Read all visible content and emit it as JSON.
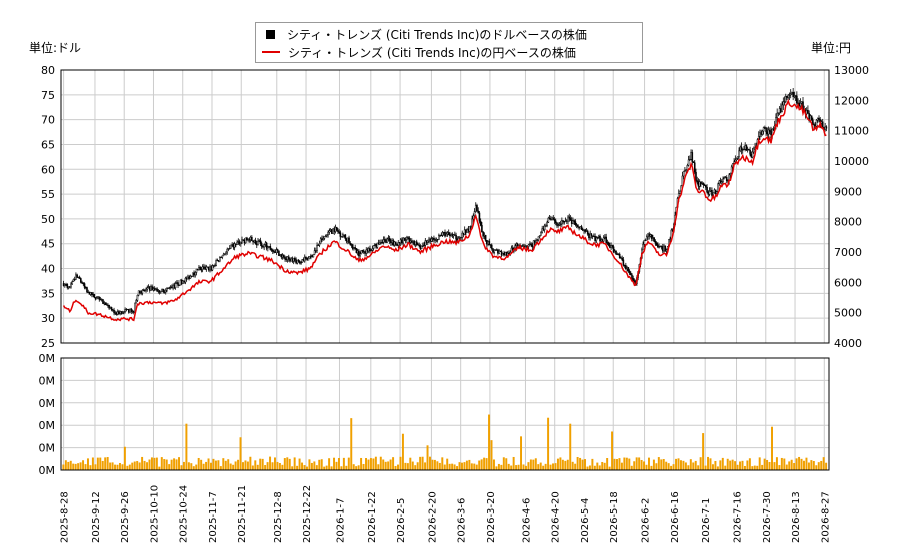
{
  "chart_data": {
    "type": "candlestick",
    "legend": [
      {
        "name": "シティ・トレンズ (Citi Trends Inc)のドルベースの株価",
        "color": "#000000",
        "marker": "square"
      },
      {
        "name": "シティ・トレンズ (Citi Trends Inc)の円ベースの株価",
        "color": "#e00000",
        "marker": "line"
      }
    ],
    "unit_left": "単位:ドル",
    "unit_right": "単位:円",
    "y_left": {
      "min": 25,
      "max": 80,
      "ticks": [
        25,
        30,
        35,
        40,
        45,
        50,
        55,
        60,
        65,
        70,
        75,
        80
      ]
    },
    "y_right": {
      "min": 4000,
      "max": 13000,
      "ticks": [
        4000,
        5000,
        6000,
        7000,
        8000,
        9000,
        10000,
        11000,
        12000,
        13000
      ]
    },
    "volume_axis": {
      "ticks": [
        "0M",
        "0M",
        "0M",
        "0M",
        "0M",
        "0M"
      ]
    },
    "x_start": "2025-08-28",
    "x_end": "2026-08-28",
    "x_tick_labels": [
      "2025-8-28",
      "2025-9-12",
      "2025-9-26",
      "2025-10-10",
      "2025-10-24",
      "2025-11-7",
      "2025-11-21",
      "2025-12-8",
      "2025-12-22",
      "2026-1-7",
      "2026-1-22",
      "2026-2-5",
      "2026-2-20",
      "2026-3-6",
      "2026-3-20",
      "2026-4-6",
      "2026-4-20",
      "2026-5-4",
      "2026-5-18",
      "2026-6-2",
      "2026-6-16",
      "2026-7-1",
      "2026-7-16",
      "2026-7-30",
      "2026-8-13",
      "2026-8-27"
    ],
    "price_path_usd": [
      [
        0,
        37
      ],
      [
        5,
        36
      ],
      [
        10,
        38.5
      ],
      [
        15,
        37
      ],
      [
        20,
        35
      ],
      [
        28,
        34
      ],
      [
        35,
        32.5
      ],
      [
        42,
        31
      ],
      [
        50,
        31.5
      ],
      [
        57,
        31.5
      ],
      [
        60,
        35
      ],
      [
        70,
        36
      ],
      [
        80,
        35.5
      ],
      [
        90,
        36.5
      ],
      [
        100,
        38
      ],
      [
        110,
        40
      ],
      [
        120,
        40
      ],
      [
        130,
        43
      ],
      [
        140,
        45
      ],
      [
        150,
        46
      ],
      [
        160,
        45
      ],
      [
        170,
        44
      ],
      [
        180,
        42
      ],
      [
        190,
        41.5
      ],
      [
        200,
        42
      ],
      [
        210,
        46
      ],
      [
        220,
        48
      ],
      [
        230,
        46
      ],
      [
        240,
        43
      ],
      [
        250,
        44
      ],
      [
        260,
        46
      ],
      [
        270,
        45
      ],
      [
        280,
        46
      ],
      [
        290,
        44.5
      ],
      [
        300,
        46
      ],
      [
        310,
        47
      ],
      [
        320,
        46
      ],
      [
        330,
        48
      ],
      [
        335,
        53
      ],
      [
        340,
        47
      ],
      [
        345,
        45
      ],
      [
        350,
        43.5
      ],
      [
        360,
        43
      ],
      [
        370,
        45
      ],
      [
        380,
        44.5
      ],
      [
        390,
        48
      ],
      [
        395,
        50
      ],
      [
        400,
        49
      ],
      [
        410,
        50
      ],
      [
        420,
        48
      ],
      [
        430,
        46
      ],
      [
        440,
        46
      ],
      [
        450,
        43
      ],
      [
        460,
        39
      ],
      [
        465,
        37
      ],
      [
        470,
        44
      ],
      [
        475,
        47
      ],
      [
        480,
        45.5
      ],
      [
        485,
        44
      ],
      [
        490,
        44
      ],
      [
        495,
        48
      ],
      [
        500,
        55
      ],
      [
        505,
        60
      ],
      [
        510,
        63
      ],
      [
        515,
        57
      ],
      [
        520,
        57
      ],
      [
        525,
        55
      ],
      [
        530,
        55.5
      ],
      [
        535,
        58
      ],
      [
        540,
        58
      ],
      [
        545,
        62
      ],
      [
        550,
        64
      ],
      [
        555,
        64
      ],
      [
        560,
        63
      ],
      [
        565,
        67
      ],
      [
        570,
        68
      ],
      [
        575,
        67
      ],
      [
        580,
        71
      ],
      [
        585,
        73
      ],
      [
        590,
        75
      ],
      [
        595,
        74
      ],
      [
        600,
        73
      ],
      [
        605,
        71
      ],
      [
        610,
        69
      ],
      [
        615,
        70
      ],
      [
        620,
        68
      ]
    ],
    "price_path_jpy": [
      [
        0,
        5200
      ],
      [
        5,
        5050
      ],
      [
        10,
        5450
      ],
      [
        15,
        5250
      ],
      [
        20,
        5000
      ],
      [
        28,
        4950
      ],
      [
        35,
        4870
      ],
      [
        42,
        4780
      ],
      [
        50,
        4800
      ],
      [
        57,
        4780
      ],
      [
        60,
        5300
      ],
      [
        70,
        5350
      ],
      [
        80,
        5300
      ],
      [
        90,
        5400
      ],
      [
        100,
        5700
      ],
      [
        110,
        6000
      ],
      [
        120,
        6050
      ],
      [
        130,
        6450
      ],
      [
        140,
        6850
      ],
      [
        150,
        6950
      ],
      [
        160,
        6850
      ],
      [
        170,
        6700
      ],
      [
        180,
        6400
      ],
      [
        190,
        6300
      ],
      [
        200,
        6450
      ],
      [
        210,
        7000
      ],
      [
        220,
        7350
      ],
      [
        230,
        7050
      ],
      [
        240,
        6700
      ],
      [
        250,
        6900
      ],
      [
        260,
        7200
      ],
      [
        270,
        7050
      ],
      [
        280,
        7250
      ],
      [
        290,
        7000
      ],
      [
        300,
        7200
      ],
      [
        310,
        7350
      ],
      [
        320,
        7300
      ],
      [
        330,
        7550
      ],
      [
        335,
        8250
      ],
      [
        340,
        7350
      ],
      [
        345,
        7050
      ],
      [
        350,
        6850
      ],
      [
        360,
        6800
      ],
      [
        370,
        7150
      ],
      [
        380,
        7050
      ],
      [
        390,
        7500
      ],
      [
        395,
        7750
      ],
      [
        400,
        7650
      ],
      [
        410,
        7800
      ],
      [
        420,
        7500
      ],
      [
        430,
        7250
      ],
      [
        440,
        7250
      ],
      [
        450,
        6750
      ],
      [
        460,
        6150
      ],
      [
        465,
        5900
      ],
      [
        470,
        6900
      ],
      [
        475,
        7350
      ],
      [
        480,
        7100
      ],
      [
        485,
        6900
      ],
      [
        490,
        6900
      ],
      [
        495,
        7550
      ],
      [
        500,
        8700
      ],
      [
        505,
        9400
      ],
      [
        510,
        9900
      ],
      [
        515,
        9000
      ],
      [
        520,
        9000
      ],
      [
        525,
        8700
      ],
      [
        530,
        8800
      ],
      [
        535,
        9200
      ],
      [
        540,
        9200
      ],
      [
        545,
        9800
      ],
      [
        550,
        10100
      ],
      [
        555,
        10100
      ],
      [
        560,
        10000
      ],
      [
        565,
        10650
      ],
      [
        570,
        10800
      ],
      [
        575,
        10650
      ],
      [
        580,
        11250
      ],
      [
        585,
        11600
      ],
      [
        590,
        11950
      ],
      [
        595,
        11800
      ],
      [
        600,
        11700
      ],
      [
        605,
        11400
      ],
      [
        610,
        11000
      ],
      [
        615,
        11150
      ],
      [
        620,
        10900
      ]
    ]
  }
}
